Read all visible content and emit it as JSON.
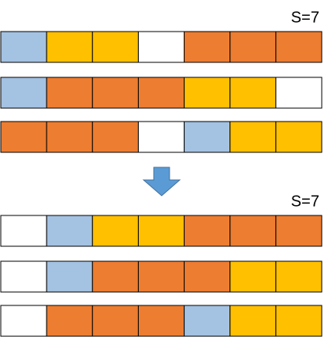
{
  "groups": [
    {
      "label": "S=7",
      "rows": [
        [
          "#a4c2e2",
          "#ffc000",
          "#ffc000",
          "#ffffff",
          "#ed7d31",
          "#ed7d31",
          "#ed7d31"
        ],
        [
          "#a4c2e2",
          "#ed7d31",
          "#ed7d31",
          "#ed7d31",
          "#ffc000",
          "#ffc000",
          "#ffffff"
        ],
        [
          "#ed7d31",
          "#ed7d31",
          "#ed7d31",
          "#ffffff",
          "#a4c2e2",
          "#ffc000",
          "#ffc000"
        ]
      ]
    },
    {
      "label": "S=7",
      "rows": [
        [
          "#ffffff",
          "#a4c2e2",
          "#ffc000",
          "#ffc000",
          "#ed7d31",
          "#ed7d31",
          "#ed7d31"
        ],
        [
          "#ffffff",
          "#a4c2e2",
          "#ed7d31",
          "#ed7d31",
          "#ed7d31",
          "#ffc000",
          "#ffc000"
        ],
        [
          "#ffffff",
          "#ed7d31",
          "#ed7d31",
          "#ed7d31",
          "#a4c2e2",
          "#ffc000",
          "#ffc000"
        ]
      ]
    }
  ]
}
